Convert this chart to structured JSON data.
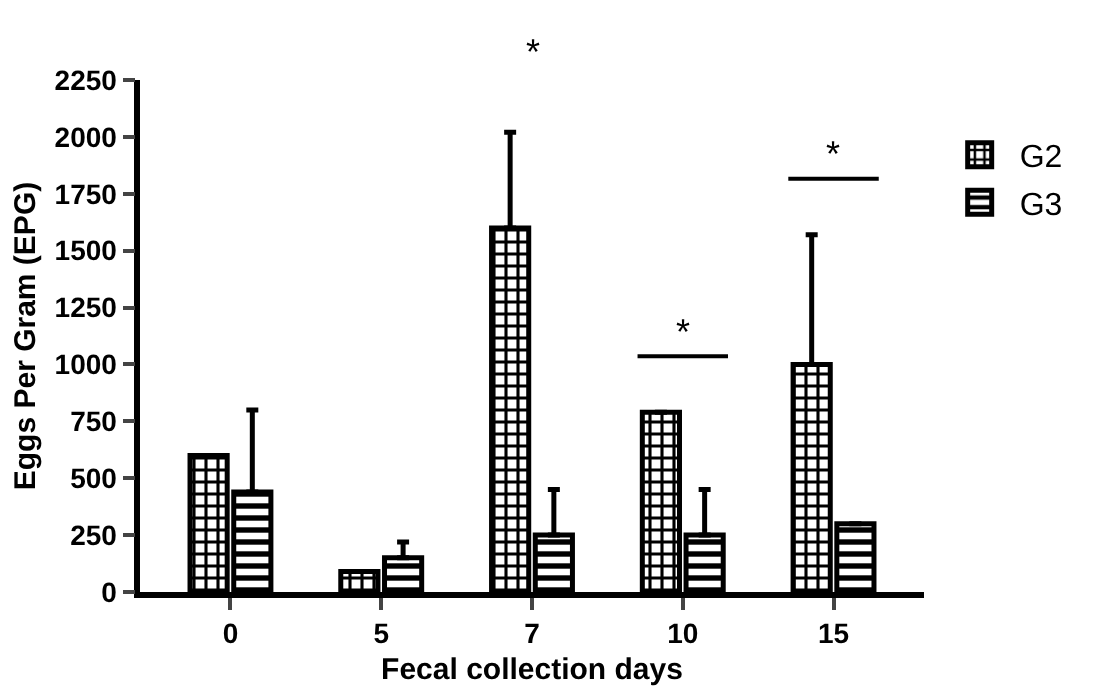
{
  "chart_data": {
    "type": "bar",
    "xlabel": "Fecal collection days",
    "ylabel": "Eggs Per Gram (EPG)",
    "categories": [
      "0",
      "5",
      "7",
      "10",
      "15"
    ],
    "series": [
      {
        "name": "G2",
        "color": "#000000",
        "values": [
          600,
          90,
          1600,
          790,
          1000
        ],
        "errors": [
          null,
          null,
          [
            1600,
            2020
          ],
          null,
          [
            1000,
            1570
          ]
        ]
      },
      {
        "name": "G3",
        "color": "#000000",
        "values": [
          440,
          150,
          250,
          250,
          300
        ],
        "errors": [
          [
            440,
            800
          ],
          [
            150,
            220
          ],
          [
            250,
            450
          ],
          [
            250,
            450
          ],
          null
        ]
      }
    ],
    "ylim": [
      0,
      2250
    ],
    "yticks": [
      0,
      250,
      500,
      750,
      1000,
      1250,
      1500,
      1750,
      2000,
      2250
    ],
    "annotations": [
      "*",
      "*",
      "*"
    ],
    "grid": false,
    "legend": "top right"
  }
}
